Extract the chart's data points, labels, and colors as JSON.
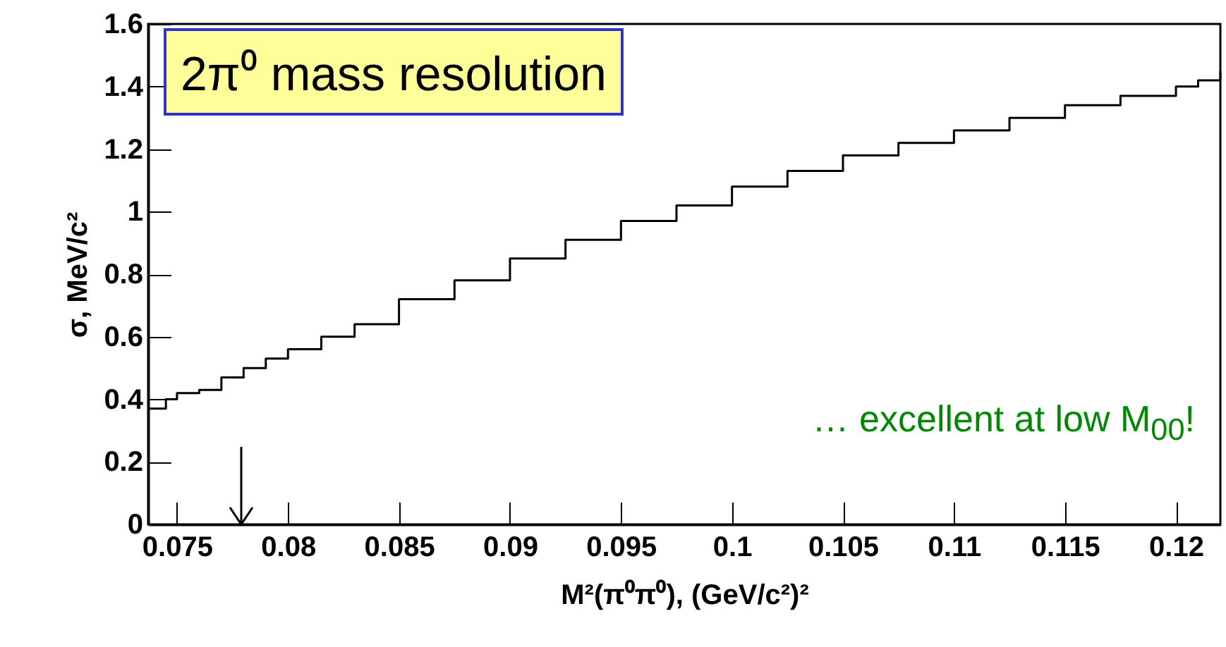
{
  "chart_data": {
    "type": "step",
    "xlabel": "M²(π⁰π⁰), (GeV/c²)²",
    "ylabel": "σ, MeV/c²",
    "annotations": [
      "2π⁰ mass resolution",
      "… excellent at low M$_{00}$!"
    ],
    "x": [
      0.0737,
      0.0745,
      0.075,
      0.076,
      0.077,
      0.078,
      0.079,
      0.08,
      0.0815,
      0.083,
      0.085,
      0.0875,
      0.09,
      0.0925,
      0.095,
      0.0975,
      0.1,
      0.1025,
      0.105,
      0.1075,
      0.11,
      0.1125,
      0.115,
      0.1175,
      0.12,
      0.121,
      0.122
    ],
    "series": [
      {
        "color": "#000000",
        "values": [
          0.37,
          0.4,
          0.42,
          0.43,
          0.47,
          0.5,
          0.53,
          0.56,
          0.6,
          0.64,
          0.72,
          0.78,
          0.85,
          0.91,
          0.97,
          1.02,
          1.08,
          1.13,
          1.18,
          1.22,
          1.26,
          1.3,
          1.34,
          1.37,
          1.4,
          1.42,
          1.45
        ]
      }
    ],
    "xlim": [
      0.0737,
      0.122
    ],
    "xticks": [
      0.075,
      0.08,
      0.085,
      0.09,
      0.095,
      0.1,
      0.105,
      0.11,
      0.115,
      0.12
    ],
    "ylim": [
      0,
      1.6
    ],
    "yticks": [
      0,
      0.2,
      0.4,
      0.6,
      0.8,
      1,
      1.2,
      1.4,
      1.6
    ],
    "grid": false
  }
}
